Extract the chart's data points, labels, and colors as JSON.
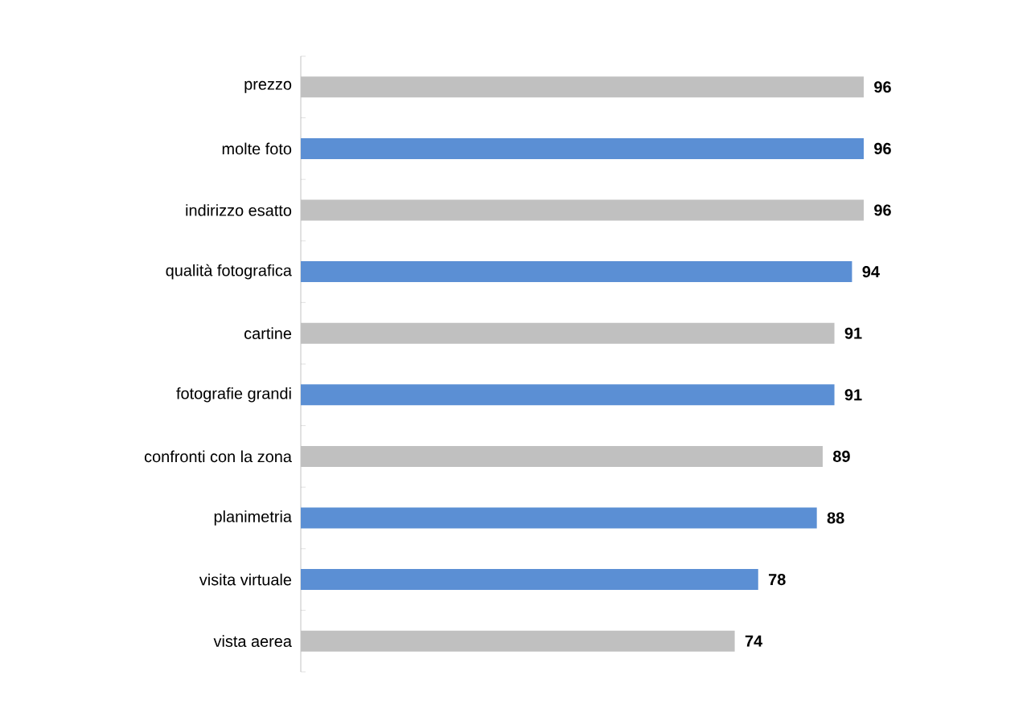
{
  "chart_data": {
    "type": "bar",
    "orientation": "horizontal",
    "categories": [
      "prezzo",
      "molte foto",
      "indirizzo esatto",
      "qualità fotografica",
      "cartine",
      "fotografie grandi",
      "confronti con la zona",
      "planimetria",
      "visita virtuale",
      "vista aerea"
    ],
    "values": [
      96,
      96,
      96,
      94,
      91,
      91,
      89,
      88,
      78,
      74
    ],
    "colors": [
      "#c0c0c0",
      "#5b8fd4",
      "#c0c0c0",
      "#5b8fd4",
      "#c0c0c0",
      "#5b8fd4",
      "#c0c0c0",
      "#5b8fd4",
      "#5b8fd4",
      "#c0c0c0"
    ],
    "data_labels": true
  }
}
